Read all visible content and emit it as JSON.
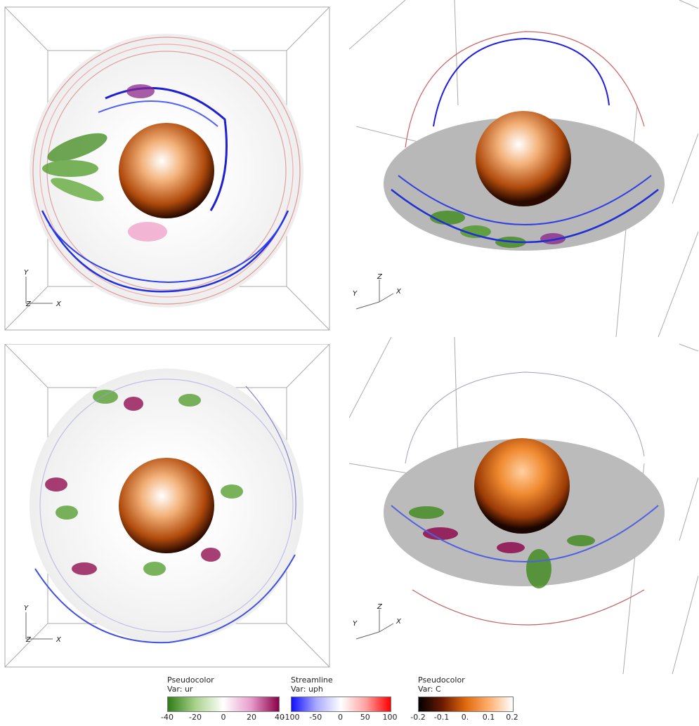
{
  "axes": {
    "x": "X",
    "y": "Y",
    "z": "Z"
  },
  "colorbars": [
    {
      "title": "Pseudocolor",
      "var": "Var: ur",
      "ticks": [
        "-40",
        "-20",
        "0",
        "20",
        "40"
      ],
      "colors": [
        "#2e7d16",
        "#a9d38b",
        "#ffffff",
        "#e79ccc",
        "#8b0047"
      ]
    },
    {
      "title": "Streamline",
      "var": "Var: uph",
      "ticks": [
        "-100",
        "-50",
        "0",
        "50",
        "100"
      ],
      "colors": [
        "#1010ff",
        "#a9a9ff",
        "#ffffff",
        "#ffa0a0",
        "#ff0000"
      ]
    },
    {
      "title": "Pseudocolor",
      "var": "Var: C",
      "ticks": [
        "-0.2",
        "-0.1",
        "0.",
        "0.1",
        "0.2"
      ],
      "colors": [
        "#000000",
        "#6b1a00",
        "#e06a0c",
        "#ffb070",
        "#ffffff"
      ]
    }
  ]
}
